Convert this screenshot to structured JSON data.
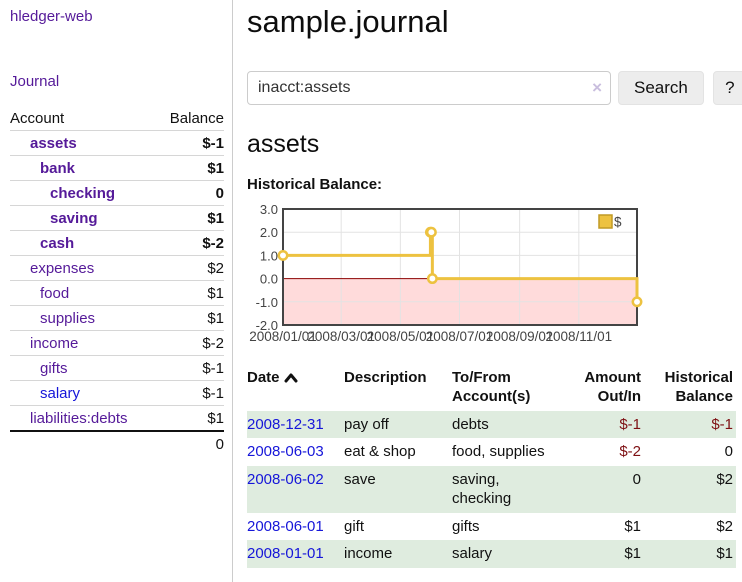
{
  "app": {
    "title": "hledger-web"
  },
  "sidebar": {
    "journal_link": "Journal",
    "accounts": {
      "header_account": "Account",
      "header_balance": "Balance",
      "rows": [
        {
          "name": "assets",
          "indent": 1,
          "balance": "$-1",
          "bold": true,
          "balance_tone": "neg-strong",
          "link_tone": "purple"
        },
        {
          "name": "bank",
          "indent": 2,
          "balance": "$1",
          "bold": true,
          "balance_tone": "",
          "link_tone": "purple"
        },
        {
          "name": "checking",
          "indent": 3,
          "balance": "0",
          "bold": true,
          "balance_tone": "",
          "link_tone": "purple"
        },
        {
          "name": "saving",
          "indent": 3,
          "balance": "$1",
          "bold": true,
          "balance_tone": "",
          "link_tone": "purple"
        },
        {
          "name": "cash",
          "indent": 2,
          "balance": "$-2",
          "bold": true,
          "balance_tone": "neg-strong",
          "link_tone": "purple"
        },
        {
          "name": "expenses",
          "indent": 1,
          "balance": "$2",
          "bold": false,
          "balance_tone": "",
          "link_tone": "purple"
        },
        {
          "name": "food",
          "indent": 2,
          "balance": "$1",
          "bold": false,
          "balance_tone": "",
          "link_tone": "purple"
        },
        {
          "name": "supplies",
          "indent": 2,
          "balance": "$1",
          "bold": false,
          "balance_tone": "",
          "link_tone": "purple"
        },
        {
          "name": "income",
          "indent": 1,
          "balance": "$-2",
          "bold": false,
          "balance_tone": "neg-soft",
          "link_tone": "purple"
        },
        {
          "name": "gifts",
          "indent": 2,
          "balance": "$-1",
          "bold": false,
          "balance_tone": "neg-soft",
          "link_tone": "purple"
        },
        {
          "name": "salary",
          "indent": 2,
          "balance": "$-1",
          "bold": false,
          "balance_tone": "neg-soft",
          "link_tone": "bluelink"
        },
        {
          "name": "liabilities:debts",
          "indent": 1,
          "balance": "$1",
          "bold": false,
          "balance_tone": "",
          "link_tone": "purple"
        }
      ],
      "total": "0"
    }
  },
  "main": {
    "page_title": "sample.journal",
    "search": {
      "value": "inacct:assets",
      "clear_icon": "×",
      "search_button": "Search",
      "help_button": "?"
    },
    "account_heading": "assets",
    "chart_heading": "Historical Balance:"
  },
  "chart_data": {
    "type": "line",
    "title": "Historical Balance:",
    "step": true,
    "series": [
      {
        "name": "$",
        "color": "#edc240",
        "points": [
          [
            "2008-01-01",
            1
          ],
          [
            "2008-06-01",
            2
          ],
          [
            "2008-06-02",
            2
          ],
          [
            "2008-06-03",
            0
          ],
          [
            "2008-12-31",
            -1
          ]
        ]
      }
    ],
    "x_start": "2008-01-01",
    "x_ticks": [
      "2008/01/01",
      "2008/03/01",
      "2008/05/01",
      "2008/07/01",
      "2008/09/01",
      "2008/11/01"
    ],
    "y_ticks": [
      "3.0",
      "2.0",
      "1.0",
      "0.0",
      "-1.0",
      "-2.0"
    ],
    "ylim": [
      -2,
      3
    ],
    "grid": true,
    "legend": {
      "label": "$",
      "position": "top-right"
    },
    "negative_region_color": "#ffdbdb",
    "zero_line_color": "#8b0000",
    "grid_color": "#e3e3e3",
    "border_color": "#444444",
    "tick_text_color": "#444444"
  },
  "transactions": {
    "headers": [
      "Date",
      "Description",
      "To/From Account(s)",
      "Amount Out/In",
      "Historical Balance"
    ],
    "rows": [
      {
        "date": "2008-12-31",
        "description": "pay off",
        "accounts": "debts",
        "amount": "$-1",
        "balance": "$-1",
        "amount_tone": "neg-strong",
        "balance_tone": "neg-strong"
      },
      {
        "date": "2008-06-03",
        "description": "eat & shop",
        "accounts": "food, supplies",
        "amount": "$-2",
        "balance": "0",
        "amount_tone": "neg-strong",
        "balance_tone": ""
      },
      {
        "date": "2008-06-02",
        "description": "save",
        "accounts": "saving, checking",
        "amount": "0",
        "balance": "$2",
        "amount_tone": "",
        "balance_tone": ""
      },
      {
        "date": "2008-06-01",
        "description": "gift",
        "accounts": "gifts",
        "amount": "$1",
        "balance": "$2",
        "amount_tone": "",
        "balance_tone": ""
      },
      {
        "date": "2008-01-01",
        "description": "income",
        "accounts": "salary",
        "amount": "$1",
        "balance": "$1",
        "amount_tone": "",
        "balance_tone": ""
      }
    ]
  }
}
